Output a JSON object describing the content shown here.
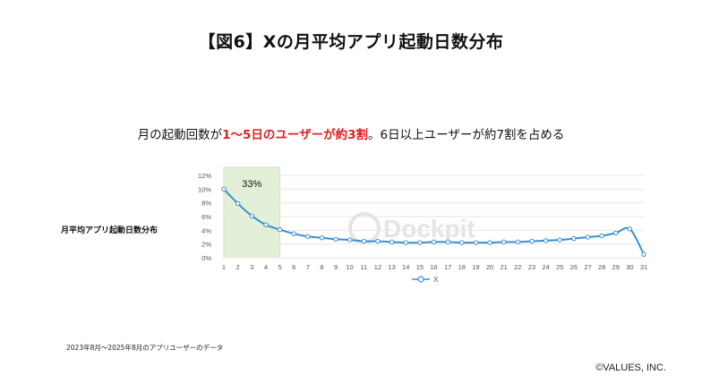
{
  "title": "【図6】Xの月平均アプリ起動日数分布",
  "headline": {
    "prefix": "月の起動回数が",
    "highlight": "1～5日のユーザーが約3割",
    "suffix": "。6日以上ユーザーが約7割を占める"
  },
  "ylabel": "月平均アプリ起動日数分布",
  "footnote": "2023年8月～2025年8月のアプリユーザーのデータ",
  "copyright": "©VALUES, INC.",
  "watermark": "Dockpit",
  "colors": {
    "line": "#3a8fd6",
    "highlight_fill": "#e3f0d8",
    "highlight_stroke": "#cfe3bf",
    "grid": "#e6e6e6"
  },
  "chart_data": {
    "type": "line",
    "categories": [
      "1",
      "2",
      "3",
      "4",
      "5",
      "6",
      "7",
      "8",
      "9",
      "10",
      "11",
      "12",
      "13",
      "14",
      "15",
      "16",
      "17",
      "18",
      "19",
      "20",
      "21",
      "22",
      "23",
      "24",
      "25",
      "26",
      "27",
      "28",
      "29",
      "30",
      "31"
    ],
    "series": [
      {
        "name": "X",
        "values": [
          10.0,
          7.9,
          6.1,
          4.8,
          4.1,
          3.5,
          3.1,
          2.9,
          2.7,
          2.6,
          2.4,
          2.4,
          2.3,
          2.2,
          2.2,
          2.3,
          2.3,
          2.2,
          2.2,
          2.2,
          2.3,
          2.3,
          2.4,
          2.5,
          2.6,
          2.8,
          3.0,
          3.2,
          3.6,
          4.2,
          0.5
        ]
      }
    ],
    "ylim": [
      0,
      12
    ],
    "yticks": [
      0,
      2,
      4,
      6,
      8,
      10,
      12
    ],
    "ytick_labels": [
      "0%",
      "2%",
      "4%",
      "6%",
      "8%",
      "10%",
      "12%"
    ],
    "highlight_range": [
      "1",
      "5"
    ],
    "highlight_label": "33%",
    "grid": true,
    "legend_position": "bottom"
  }
}
